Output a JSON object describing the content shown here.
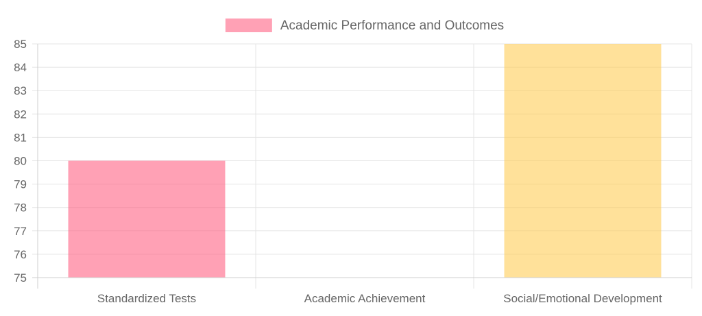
{
  "chart_data": {
    "type": "bar",
    "categories": [
      "Standardized Tests",
      "Academic Achievement",
      "Social/Emotional Development"
    ],
    "series": [
      {
        "name": "Academic Performance and Outcomes",
        "values": [
          80,
          75,
          85
        ],
        "colors": [
          "#ff6384",
          "#36a2eb",
          "#ffcd56"
        ]
      }
    ],
    "legend_color": "#ff6384",
    "bar_opacity": 0.6,
    "ylim": [
      75,
      85
    ],
    "yticks": [
      75,
      76,
      77,
      78,
      79,
      80,
      81,
      82,
      83,
      84,
      85
    ],
    "grid": true,
    "legend_position": "top",
    "title": "",
    "xlabel": "",
    "ylabel": ""
  }
}
